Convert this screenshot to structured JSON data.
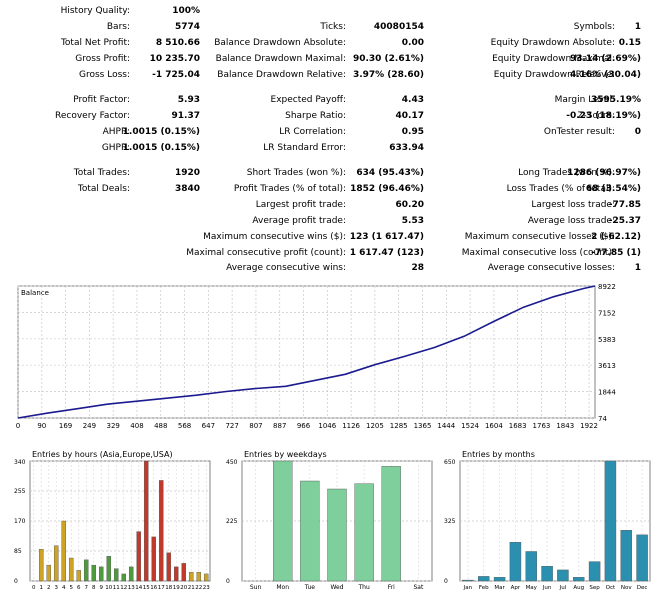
{
  "stats": {
    "history_quality": {
      "label": "History Quality:",
      "value": "100%"
    },
    "bars": {
      "label": "Bars:",
      "value": "5774"
    },
    "ticks": {
      "label": "Ticks:",
      "value": "40080154"
    },
    "symbols": {
      "label": "Symbols:",
      "value": "1"
    },
    "total_net_profit": {
      "label": "Total Net Profit:",
      "value": "8 510.66"
    },
    "balance_dd_abs": {
      "label": "Balance Drawdown Absolute:",
      "value": "0.00"
    },
    "equity_dd_abs": {
      "label": "Equity Drawdown Absolute:",
      "value": "0.15"
    },
    "gross_profit": {
      "label": "Gross Profit:",
      "value": "10 235.70"
    },
    "balance_dd_max": {
      "label": "Balance Drawdown Maximal:",
      "value": "90.30 (2.61%)"
    },
    "equity_dd_max": {
      "label": "Equity Drawdown Maximal:",
      "value": "93.14 (2.69%)"
    },
    "gross_loss": {
      "label": "Gross Loss:",
      "value": "-1 725.04"
    },
    "balance_dd_rel": {
      "label": "Balance Drawdown Relative:",
      "value": "3.97% (28.60)"
    },
    "equity_dd_rel": {
      "label": "Equity Drawdown Relative:",
      "value": "4.16% (30.04)"
    },
    "profit_factor": {
      "label": "Profit Factor:",
      "value": "5.93"
    },
    "expected_payoff": {
      "label": "Expected Payoff:",
      "value": "4.43"
    },
    "margin_level": {
      "label": "Margin Level:",
      "value": "3595.19%"
    },
    "recovery_factor": {
      "label": "Recovery Factor:",
      "value": "91.37"
    },
    "sharpe_ratio": {
      "label": "Sharpe Ratio:",
      "value": "40.17"
    },
    "z_score": {
      "label": "Z-Score:",
      "value": "-0.23 (18.19%)"
    },
    "ahpr": {
      "label": "AHPR:",
      "value": "1.0015 (0.15%)"
    },
    "lr_correlation": {
      "label": "LR Correlation:",
      "value": "0.95"
    },
    "ontester_result": {
      "label": "OnTester result:",
      "value": "0"
    },
    "ghpr": {
      "label": "GHPR:",
      "value": "1.0015 (0.15%)"
    },
    "lr_std_error": {
      "label": "LR Standard Error:",
      "value": "633.94"
    },
    "total_trades": {
      "label": "Total Trades:",
      "value": "1920"
    },
    "short_trades": {
      "label": "Short Trades (won %):",
      "value": "634 (95.43%)"
    },
    "long_trades": {
      "label": "Long Trades (won %):",
      "value": "1286 (96.97%)"
    },
    "total_deals": {
      "label": "Total Deals:",
      "value": "3840"
    },
    "profit_trades": {
      "label": "Profit Trades (% of total):",
      "value": "1852 (96.46%)"
    },
    "loss_trades": {
      "label": "Loss Trades (% of total):",
      "value": "68 (3.54%)"
    },
    "largest_profit": {
      "label": "Largest profit trade:",
      "value": "60.20"
    },
    "largest_loss": {
      "label": "Largest loss trade:",
      "value": "-77.85"
    },
    "avg_profit": {
      "label": "Average profit trade:",
      "value": "5.53"
    },
    "avg_loss": {
      "label": "Average loss trade:",
      "value": "-25.37"
    },
    "max_cons_wins": {
      "label": "Maximum consecutive wins ($):",
      "value": "123 (1 617.47)"
    },
    "max_cons_losses": {
      "label": "Maximum consecutive losses ($):",
      "value": "2 (-62.12)"
    },
    "maximal_cons_profit": {
      "label": "Maximal consecutive profit (count):",
      "value": "1 617.47 (123)"
    },
    "maximal_cons_loss": {
      "label": "Maximal consecutive loss (count):",
      "value": "-77.85 (1)"
    },
    "avg_cons_wins": {
      "label": "Average consecutive wins:",
      "value": "28"
    },
    "avg_cons_losses": {
      "label": "Average consecutive losses:",
      "value": "1"
    }
  },
  "chart_data": [
    {
      "type": "line",
      "title": "Balance",
      "x_ticks": [
        "0",
        "90",
        "169",
        "249",
        "329",
        "408",
        "488",
        "568",
        "647",
        "727",
        "807",
        "887",
        "966",
        "1046",
        "1126",
        "1205",
        "1285",
        "1365",
        "1444",
        "1524",
        "1604",
        "1683",
        "1763",
        "1843",
        "1922"
      ],
      "y_ticks": [
        "74",
        "1844",
        "3613",
        "5383",
        "7152",
        "8922"
      ],
      "xlim": [
        0,
        1940
      ],
      "ylim": [
        74,
        8922
      ],
      "line_color": "#1b1b8f",
      "series": [
        {
          "x": [
            0,
            100,
            200,
            300,
            400,
            500,
            600,
            700,
            800,
            900,
            1000,
            1100,
            1200,
            1300,
            1400,
            1500,
            1600,
            1700,
            1800,
            1900,
            1940
          ],
          "y": [
            74,
            400,
            700,
            1000,
            1200,
            1400,
            1600,
            1850,
            2050,
            2200,
            2600,
            3000,
            3650,
            4200,
            4800,
            5550,
            6550,
            7500,
            8200,
            8750,
            8922
          ]
        }
      ]
    },
    {
      "type": "bar",
      "title": "Entries by hours (Asia,Europe,USA)",
      "categories": [
        "0",
        "1",
        "2",
        "3",
        "4",
        "5",
        "6",
        "7",
        "8",
        "9",
        "10",
        "11",
        "12",
        "13",
        "14",
        "15",
        "16",
        "17",
        "18",
        "19",
        "20",
        "21",
        "22",
        "23"
      ],
      "values": [
        0,
        90,
        45,
        100,
        170,
        65,
        30,
        60,
        45,
        40,
        70,
        35,
        20,
        40,
        140,
        340,
        125,
        285,
        80,
        40,
        50,
        25,
        25,
        20
      ],
      "colors": [
        "#cda225",
        "#cda225",
        "#cda225",
        "#cda225",
        "#cda225",
        "#cda225",
        "#cda225",
        "#4e9a3c",
        "#4e9a3c",
        "#4e9a3c",
        "#4e9a3c",
        "#4e9a3c",
        "#4e9a3c",
        "#4e9a3c",
        "#c0392b",
        "#c0392b",
        "#c0392b",
        "#c0392b",
        "#c0392b",
        "#c0392b",
        "#c0392b",
        "#cda225",
        "#cda225",
        "#cda225"
      ],
      "y_ticks": [
        "0",
        "85",
        "170",
        "255",
        "340"
      ],
      "ylim": [
        0,
        340
      ]
    },
    {
      "type": "bar",
      "title": "Entries by weekdays",
      "categories": [
        "Sun",
        "Mon",
        "Tue",
        "Wed",
        "Thu",
        "Fri",
        "Sat"
      ],
      "values": [
        0,
        450,
        375,
        345,
        365,
        430,
        0
      ],
      "color": "#7fcf9c",
      "y_ticks": [
        "0",
        "225",
        "450"
      ],
      "ylim": [
        0,
        450
      ]
    },
    {
      "type": "bar",
      "title": "Entries by months",
      "categories": [
        "Jan",
        "Feb",
        "Mar",
        "Apr",
        "May",
        "Jun",
        "Jul",
        "Aug",
        "Sep",
        "Oct",
        "Nov",
        "Dec"
      ],
      "values": [
        5,
        25,
        20,
        210,
        160,
        80,
        60,
        20,
        105,
        650,
        275,
        250
      ],
      "color": "#2b8fb0",
      "y_ticks": [
        "0",
        "325",
        "650"
      ],
      "ylim": [
        0,
        650
      ]
    }
  ]
}
